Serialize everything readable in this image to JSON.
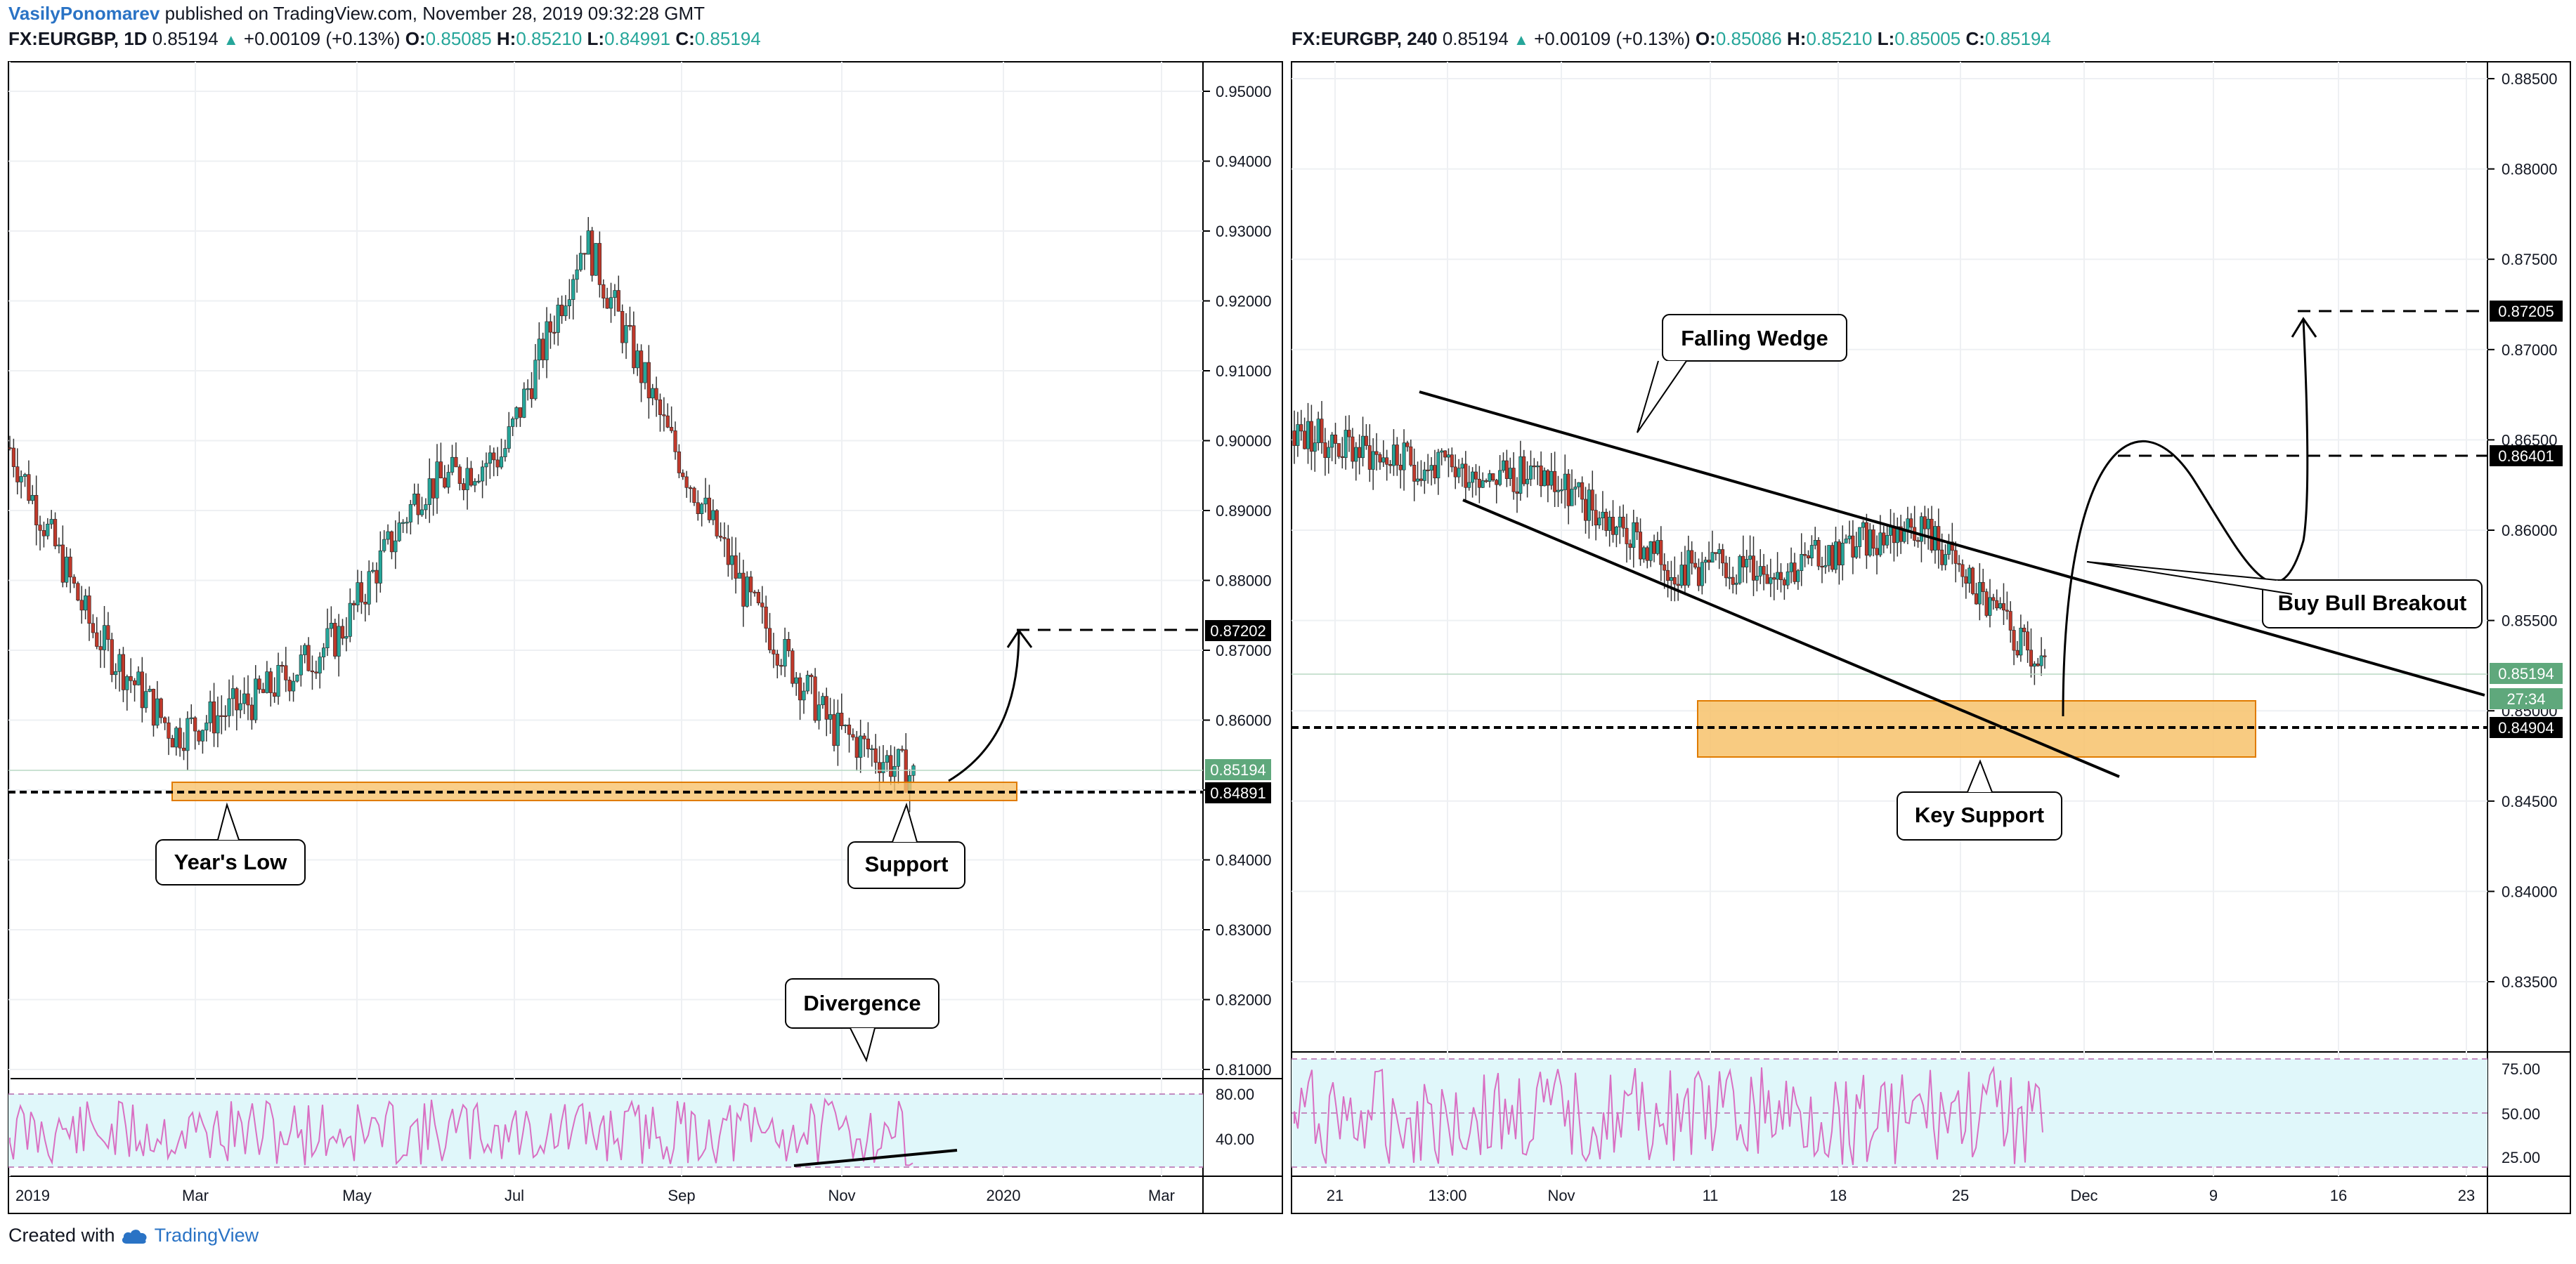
{
  "header": {
    "author": "VasilyPonomarev",
    "published_text": " published on TradingView.com, November 28, 2019 09:32:28 GMT"
  },
  "footer": {
    "created_with": "Created with",
    "brand": "TradingView"
  },
  "colors": {
    "bull": "#26a69a",
    "bear": "#c0392b",
    "support_fill": "#f7c26b",
    "rsi_fill": "#e0f7fa",
    "rsi_line": "#d96fc2"
  },
  "left": {
    "symbol": "FX:EURGBP, 1D",
    "price": "0.85194",
    "change": "+0.00109 (+0.13%)",
    "o_label": "O:",
    "o": "0.85085",
    "h_label": "H:",
    "h": "0.85210",
    "l_label": "L:",
    "l": "0.84991",
    "c_label": "C:",
    "c": "0.85194",
    "price_labels": [
      "0.95000",
      "0.94000",
      "0.93000",
      "0.92000",
      "0.91000",
      "0.90000",
      "0.89000",
      "0.88000",
      "0.87000",
      "0.86000",
      "0.85000",
      "0.84000",
      "0.83000",
      "0.82000",
      "0.81000"
    ],
    "rsi_labels": [
      "80.00",
      "40.00"
    ],
    "time_labels": [
      "2019",
      "Mar",
      "May",
      "Jul",
      "Sep",
      "Nov",
      "2020",
      "Mar"
    ],
    "tags": {
      "last": "0.85194",
      "support": "0.84891",
      "target": "0.87202"
    },
    "annotations": {
      "years_low": "Year's Low",
      "support": "Support",
      "divergence": "Divergence"
    }
  },
  "right": {
    "symbol": "FX:EURGBP, 240",
    "price": "0.85194",
    "change": "+0.00109 (+0.13%)",
    "o_label": "O:",
    "o": "0.85086",
    "h_label": "H:",
    "h": "0.85210",
    "l_label": "L:",
    "l": "0.85005",
    "c_label": "C:",
    "c": "0.85194",
    "price_labels": [
      "0.88500",
      "0.88000",
      "0.87500",
      "0.87000",
      "0.86500",
      "0.86000",
      "0.85500",
      "0.85000",
      "0.84500",
      "0.84000",
      "0.83500"
    ],
    "rsi_labels": [
      "75.00",
      "50.00",
      "25.00"
    ],
    "time_labels": [
      "21",
      "13:00",
      "Nov",
      "11",
      "18",
      "25",
      "Dec",
      "9",
      "16",
      "23"
    ],
    "tags": {
      "last": "0.85194",
      "countdown": "27:34",
      "support": "0.84904",
      "target1": "0.86401",
      "target2": "0.87205"
    },
    "annotations": {
      "falling_wedge": "Falling Wedge",
      "key_support": "Key Support",
      "buy_bull": "Buy Bull Breakout"
    }
  },
  "chart_data": [
    {
      "type": "candlestick",
      "title": "FX:EURGBP, 1D",
      "ylim": [
        0.805,
        0.955
      ],
      "x_ticks": [
        "2019",
        "Mar",
        "May",
        "Jul",
        "Sep",
        "Nov",
        "2020",
        "Mar"
      ],
      "close_path": [
        [
          "Jan",
          0.899
        ],
        [
          "Feb",
          0.873
        ],
        [
          "Mar",
          0.858
        ],
        [
          "Apr",
          0.863
        ],
        [
          "May",
          0.872
        ],
        [
          "Jun",
          0.893
        ],
        [
          "Jul",
          0.898
        ],
        [
          "Aug",
          0.929
        ],
        [
          "Sep",
          0.901
        ],
        [
          "Oct",
          0.877
        ],
        [
          "Nov",
          0.859
        ],
        [
          "Nov 28",
          0.85194
        ]
      ],
      "levels": {
        "support": 0.84891,
        "target": 0.87202,
        "last": 0.85194
      },
      "indicator": {
        "name": "RSI",
        "levels": [
          80,
          40
        ]
      },
      "grid": true
    },
    {
      "type": "candlestick",
      "title": "FX:EURGBP, 240",
      "ylim": [
        0.832,
        0.8865
      ],
      "x_ticks": [
        "21",
        "13:00",
        "Nov",
        "11",
        "18",
        "25",
        "Dec",
        "9",
        "16",
        "23"
      ],
      "close_path": [
        [
          "Oct 21",
          0.8655
        ],
        [
          "Oct 28",
          0.8635
        ],
        [
          "Nov 4",
          0.863
        ],
        [
          "Nov 11",
          0.858
        ],
        [
          "Nov 18",
          0.858
        ],
        [
          "Nov 25",
          0.8605
        ],
        [
          "Nov 28",
          0.85194
        ]
      ],
      "levels": {
        "support": 0.84904,
        "target1": 0.86401,
        "target2": 0.87205,
        "last": 0.85194
      },
      "indicator": {
        "name": "RSI",
        "levels": [
          75,
          50,
          25
        ]
      },
      "grid": true
    }
  ]
}
